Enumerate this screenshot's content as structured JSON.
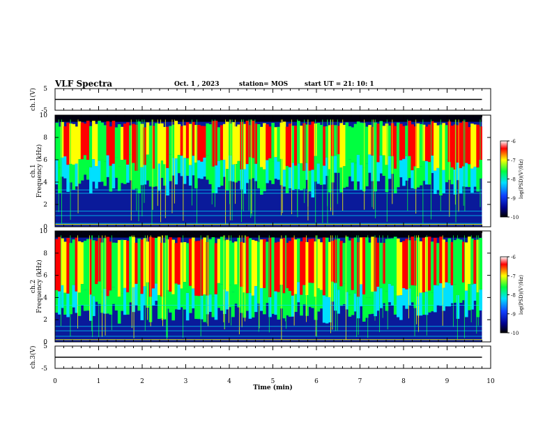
{
  "header": {
    "title": "VLF Spectra",
    "date": "Oct. 1 , 2023",
    "station": "station= MOS",
    "start_ut": "start UT =   21: 10: 1"
  },
  "chart_data": [
    {
      "type": "line",
      "panel": "ch1-waveform",
      "ylabel": "ch.1(V)",
      "ylim": [
        -5,
        5
      ],
      "y_ticks": [
        "5",
        "-5"
      ],
      "series": [
        {
          "x": [
            0,
            9.8
          ],
          "y": [
            0,
            0
          ]
        }
      ]
    },
    {
      "type": "heatmap",
      "panel": "ch1-spectrogram",
      "ylabel": "ch.1\nFrequency (kHz)",
      "ylim": [
        0,
        10
      ],
      "y_ticks": [
        "0",
        "2",
        "4",
        "6",
        "8",
        "10"
      ],
      "xlim": [
        0,
        9.8
      ],
      "colorbar": {
        "label": "log(PSD)(V²/Hz)",
        "range": [
          -10,
          -6
        ],
        "ticks": [
          "-6",
          "-7",
          "-8",
          "-9",
          "-10"
        ]
      },
      "intense_band_khz": [
        5,
        9.5
      ],
      "persistent_lines_khz": [
        0.3,
        1.0,
        1.4,
        3.0,
        3.3
      ]
    },
    {
      "type": "heatmap",
      "panel": "ch2-spectrogram",
      "ylabel": "ch.2\nFrequency (kHz)",
      "ylim": [
        0,
        10
      ],
      "y_ticks": [
        "0",
        "2",
        "4",
        "6",
        "8",
        "10"
      ],
      "xlim": [
        0,
        9.8
      ],
      "colorbar": {
        "label": "log(PSD)(V²/Hz)",
        "range": [
          -10,
          -6
        ],
        "ticks": [
          "-6",
          "-7",
          "-8",
          "-9",
          "-10"
        ]
      },
      "intense_band_khz": [
        4,
        9.5
      ],
      "persistent_lines_khz": [
        0.5,
        1.0,
        1.4,
        3.3
      ]
    },
    {
      "type": "line",
      "panel": "ch3-waveform",
      "ylabel": "ch.3(V)",
      "ylim": [
        -5,
        5
      ],
      "y_ticks": [
        "5",
        "-5"
      ],
      "series": [
        {
          "x": [
            0,
            9.8
          ],
          "y": [
            0,
            0
          ]
        }
      ]
    }
  ],
  "x_axis": {
    "label": "Time (min)",
    "xlim": [
      0,
      10
    ],
    "ticks": [
      "0",
      "1",
      "2",
      "3",
      "4",
      "5",
      "6",
      "7",
      "8",
      "9",
      "10"
    ]
  },
  "colors": {
    "colormap": [
      "#000000",
      "#00008b",
      "#1040ff",
      "#00e0ff",
      "#00ff40",
      "#ffff00",
      "#ff0000",
      "#ffffff"
    ]
  }
}
